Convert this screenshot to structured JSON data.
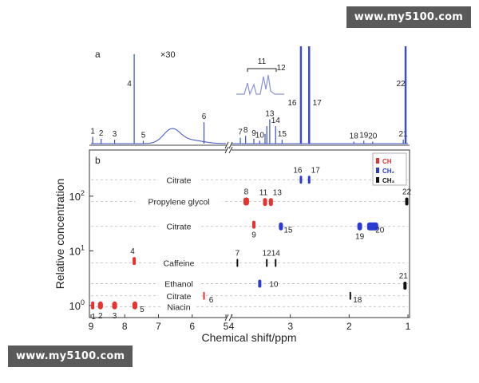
{
  "watermark_top": "www.my5100.com",
  "watermark_bottom": "www.my5100.com",
  "chart_data": [
    {
      "type": "line",
      "panel_label": "a",
      "zoom_label": "×30",
      "inset_label": "11",
      "x_axis": "ppm (reversed, broken between 4.9 and 4.0)",
      "peaks": [
        {
          "label": "1",
          "x": 8.95,
          "h": 0.07
        },
        {
          "label": "2",
          "x": 8.7,
          "h": 0.05
        },
        {
          "label": "3",
          "x": 8.3,
          "h": 0.04
        },
        {
          "label": "4",
          "x": 7.72,
          "h": 0.92
        },
        {
          "label": "5",
          "x": 7.45,
          "h": 0.03
        },
        {
          "label": "6",
          "x": 5.65,
          "h": 0.22
        },
        {
          "label": "7",
          "x": 3.85,
          "h": 0.06
        },
        {
          "label": "8",
          "x": 3.76,
          "h": 0.08
        },
        {
          "label": "9",
          "x": 3.62,
          "h": 0.05
        },
        {
          "label": "10",
          "x": 3.52,
          "h": 0.03
        },
        {
          "label": "11",
          "x": 3.43,
          "h": 0.1
        },
        {
          "label": "12",
          "x": 3.4,
          "h": 0.18
        },
        {
          "label": "13",
          "x": 3.35,
          "h": 0.25
        },
        {
          "label": "14",
          "x": 3.25,
          "h": 0.18
        },
        {
          "label": "15",
          "x": 3.14,
          "h": 0.04
        },
        {
          "label": "16",
          "x": 2.82,
          "h": 1.0
        },
        {
          "label": "17",
          "x": 2.68,
          "h": 1.0
        },
        {
          "label": "18",
          "x": 1.92,
          "h": 0.02
        },
        {
          "label": "19",
          "x": 1.75,
          "h": 0.03
        },
        {
          "label": "20",
          "x": 1.6,
          "h": 0.02
        },
        {
          "label": "21",
          "x": 1.08,
          "h": 0.04
        },
        {
          "label": "22",
          "x": 1.04,
          "h": 1.0
        }
      ]
    },
    {
      "type": "scatter",
      "panel_label": "b",
      "xlabel": "Chemical shift/ppm",
      "ylabel": "Relative concentration",
      "x_scale": "reversed, broken",
      "x_segments": [
        [
          9,
          5
        ],
        [
          4,
          1
        ]
      ],
      "x_ticks": [
        "9",
        "8",
        "7",
        "6",
        "5",
        "4",
        "3",
        "2",
        "1"
      ],
      "y_scale": "log",
      "ylim": [
        0.6,
        700
      ],
      "y_ticks": [
        {
          "base": "10",
          "exp": "0",
          "value": 1
        },
        {
          "base": "10",
          "exp": "1",
          "value": 10
        },
        {
          "base": "10",
          "exp": "2",
          "value": 100
        }
      ],
      "legend": {
        "position": "top-right",
        "items": [
          {
            "label": "CH",
            "color": "#e8322e"
          },
          {
            "label": "CH₂",
            "color": "#2a3bd4"
          },
          {
            "label": "CH₃",
            "color": "#111111"
          }
        ]
      },
      "compound_rows": [
        {
          "label": "Citrate",
          "y": 200
        },
        {
          "label": "Propylene glycol",
          "y": 80
        },
        {
          "label": "Citrate",
          "y": 28
        },
        {
          "label": "Caffeine",
          "y": 6
        },
        {
          "label": "Ethanol",
          "y": 2.5
        },
        {
          "label": "Citrate",
          "y": 1.5
        },
        {
          "label": "Niacin",
          "y": 0.95
        }
      ],
      "points": [
        {
          "label": "1",
          "x": 8.95,
          "y": 1.0,
          "group": "CH",
          "w": 4
        },
        {
          "label": "2",
          "x": 8.72,
          "y": 1.0,
          "group": "CH",
          "w": 6
        },
        {
          "label": "3",
          "x": 8.3,
          "y": 1.0,
          "group": "CH",
          "w": 6
        },
        {
          "label": "4",
          "x": 7.72,
          "y": 6.5,
          "group": "CH",
          "w": 4
        },
        {
          "label": "5",
          "x": 7.7,
          "y": 1.0,
          "group": "CH",
          "w": 6
        },
        {
          "label": "6",
          "x": 5.65,
          "y": 1.5,
          "group": "CH",
          "w": 2
        },
        {
          "label": "7",
          "x": 3.9,
          "y": 6.0,
          "group": "CH3",
          "w": 2
        },
        {
          "label": "8",
          "x": 3.75,
          "y": 80,
          "group": "CH",
          "w": 7
        },
        {
          "label": "9",
          "x": 3.62,
          "y": 30,
          "group": "CH",
          "w": 4
        },
        {
          "label": "10",
          "x": 3.52,
          "y": 2.5,
          "group": "CH2",
          "w": 4
        },
        {
          "label": "11",
          "x": 3.43,
          "y": 78,
          "group": "CH",
          "w": 5
        },
        {
          "label": "12",
          "x": 3.4,
          "y": 6.0,
          "group": "CH3",
          "w": 2
        },
        {
          "label": "13",
          "x": 3.33,
          "y": 78,
          "group": "CH",
          "w": 5
        },
        {
          "label": "14",
          "x": 3.25,
          "y": 6.0,
          "group": "CH3",
          "w": 2
        },
        {
          "label": "15",
          "x": 3.16,
          "y": 28,
          "group": "CH2",
          "w": 5
        },
        {
          "label": "16",
          "x": 2.82,
          "y": 200,
          "group": "CH2",
          "w": 3
        },
        {
          "label": "17",
          "x": 2.68,
          "y": 200,
          "group": "CH2",
          "w": 3
        },
        {
          "label": "18",
          "x": 1.98,
          "y": 1.5,
          "group": "CH3",
          "w": 2
        },
        {
          "label": "19",
          "x": 1.82,
          "y": 28,
          "group": "CH2",
          "w": 6
        },
        {
          "label": "20",
          "x": 1.6,
          "y": 28,
          "group": "CH2",
          "w": 14
        },
        {
          "label": "21",
          "x": 1.05,
          "y": 2.3,
          "group": "CH3",
          "w": 4
        },
        {
          "label": "22",
          "x": 1.02,
          "y": 80,
          "group": "CH3",
          "w": 4
        }
      ]
    }
  ]
}
